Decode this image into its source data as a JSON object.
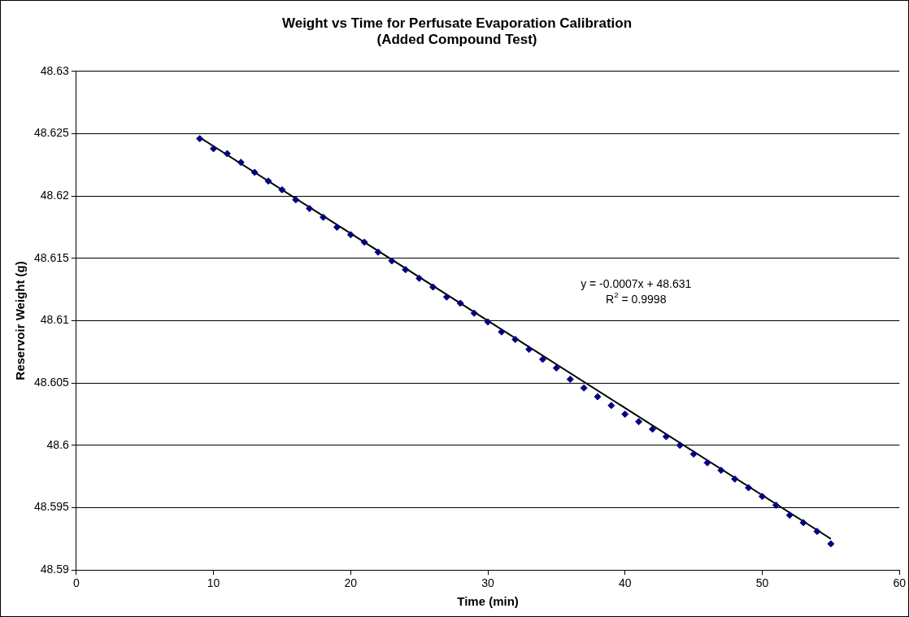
{
  "chart_data": {
    "type": "scatter",
    "title": "Weight vs Time for Perfusate Evaporation Calibration\n(Added Compound Test)",
    "xlabel": "Time (min)",
    "ylabel": "Reservoir Weight (g)",
    "x": [
      9,
      10,
      11,
      12,
      13,
      14,
      15,
      16,
      17,
      18,
      19,
      20,
      21,
      22,
      23,
      24,
      25,
      26,
      27,
      28,
      29,
      30,
      31,
      32,
      33,
      34,
      35,
      36,
      37,
      38,
      39,
      40,
      41,
      42,
      43,
      44,
      45,
      46,
      47,
      48,
      49,
      50,
      51,
      52,
      53,
      54,
      55
    ],
    "series": [
      {
        "color": "#000080",
        "marker": "diamond",
        "values": [
          48.6246,
          48.6238,
          48.6234,
          48.6227,
          48.6219,
          48.6212,
          48.6205,
          48.6197,
          48.619,
          48.6183,
          48.6175,
          48.6169,
          48.6163,
          48.6155,
          48.6148,
          48.6141,
          48.6134,
          48.6127,
          48.6119,
          48.6114,
          48.6106,
          48.6099,
          48.6091,
          48.6085,
          48.6077,
          48.6069,
          48.6062,
          48.6053,
          48.6046,
          48.6039,
          48.6032,
          48.6025,
          48.6019,
          48.6013,
          48.6007,
          48.6,
          48.5993,
          48.5986,
          48.598,
          48.5973,
          48.5966,
          48.5959,
          48.5952,
          48.5944,
          48.5938,
          48.5931,
          48.5921
        ]
      },
      {
        "type": "line",
        "color": "#000000",
        "marker": "none",
        "x": [
          9,
          55
        ],
        "values": [
          48.6247,
          48.5925
        ]
      }
    ],
    "annotations": [
      "y = -0.0007x + 48.631",
      "R$^{2}$ = 0.9998"
    ],
    "xlim": [
      0,
      60
    ],
    "xticks": [
      0,
      10,
      20,
      30,
      40,
      50,
      60
    ],
    "ylim": [
      48.59,
      48.63
    ],
    "yticks": [
      48.59,
      48.595,
      48.6,
      48.605,
      48.61,
      48.615,
      48.62,
      48.625,
      48.63
    ],
    "grid": "y",
    "legend": false
  }
}
